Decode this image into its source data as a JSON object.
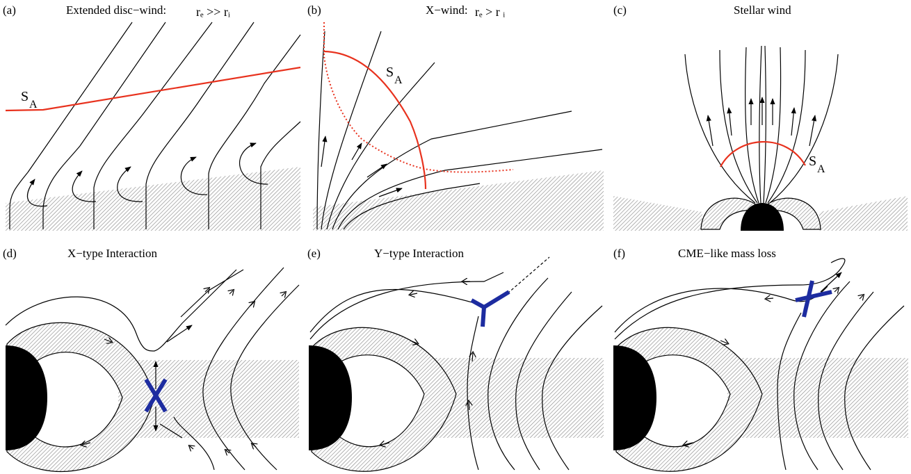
{
  "panels": {
    "a": {
      "tag": "(a)",
      "title": "Extended disc−wind:",
      "title_math": "rₑ >> rᵢ",
      "sa": "S",
      "sa_sub": "A"
    },
    "b": {
      "tag": "(b)",
      "title": "X−wind:",
      "title_math": "rₑ > r ᵢ",
      "sa": "S",
      "sa_sub": "A"
    },
    "c": {
      "tag": "(c)",
      "title": "Stellar wind",
      "sa": "S",
      "sa_sub": "A"
    },
    "d": {
      "tag": "(d)",
      "title": "X−type Interaction"
    },
    "e": {
      "tag": "(e)",
      "title": "Y−type Interaction"
    },
    "f": {
      "tag": "(f)",
      "title": "CME−like mass loss"
    }
  },
  "colors": {
    "alfven_surface": "#e8321e",
    "reconnection": "#1d2ca0",
    "star": "#000000",
    "disc_hatch": "#9a9a9a"
  }
}
